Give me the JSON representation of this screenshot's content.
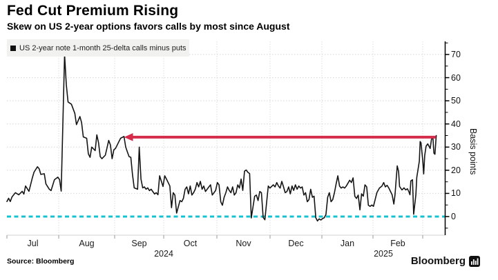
{
  "header": {
    "title": "Fed Cut Premium Rising",
    "subtitle": "Skew on US 2-year options favors calls by most since August"
  },
  "legend": {
    "marker": "black-square",
    "label": "US 2-year note 1-month 25-delta calls minus puts"
  },
  "source": {
    "label": "Source: Bloomberg"
  },
  "brand": {
    "label": "Bloomberg",
    "icon": "bloomberg-terminal-icon"
  },
  "colors": {
    "line": "#141414",
    "arrow": "#d62c4b",
    "zero_line": "#14c3cf",
    "grid": "#d6d6d6",
    "month_grid": "#dedede",
    "legend_bg": "#f1f1ef"
  },
  "chart_data": {
    "type": "line",
    "title": "Fed Cut Premium Rising",
    "subtitle": "Skew on US 2-year options favors calls by most since August",
    "y_axis": {
      "label": "Basis points",
      "ticks": [
        0,
        10,
        20,
        30,
        40,
        50,
        60,
        70
      ],
      "minor_ticks": [
        -5,
        5,
        15,
        25,
        35,
        45,
        55,
        65,
        75
      ],
      "range": [
        -8,
        76
      ],
      "grid": "dotted"
    },
    "x_axis": {
      "unit": "days since Jul 1 2024",
      "months": [
        "Jul",
        "Aug",
        "Sep",
        "Oct",
        "Nov",
        "Dec",
        "Jan",
        "Feb"
      ],
      "years": [
        "2024",
        "2025"
      ]
    },
    "annotations": {
      "arrow": {
        "type": "horizontal-arrow",
        "level": 34.3,
        "tip_day": 69,
        "end_day": 252.8,
        "color": "#d62c4b",
        "meaning": "skew back at highest level since early September"
      },
      "zero_line": {
        "value": 0,
        "style": "dashed",
        "color": "#14c3cf"
      }
    },
    "series": [
      {
        "name": "US 2-year note 1-month 25-delta calls minus puts",
        "color": "#141414",
        "points": [
          [
            0,
            6.5
          ],
          [
            1,
            7.9
          ],
          [
            2,
            6.5
          ],
          [
            3,
            8.5
          ],
          [
            5,
            10.3
          ],
          [
            7,
            9.4
          ],
          [
            9,
            10.9
          ],
          [
            10,
            9.7
          ],
          [
            11,
            13.2
          ],
          [
            13,
            10.9
          ],
          [
            15,
            16.8
          ],
          [
            16,
            19.2
          ],
          [
            18,
            21.5
          ],
          [
            19,
            20.6
          ],
          [
            20,
            18.2
          ],
          [
            22,
            18.5
          ],
          [
            23,
            14.1
          ],
          [
            25,
            11.8
          ],
          [
            26,
            11.2
          ],
          [
            28,
            15.9
          ],
          [
            30,
            17
          ],
          [
            31,
            16
          ],
          [
            32,
            11
          ],
          [
            34,
            70
          ],
          [
            35,
            57
          ],
          [
            36,
            49.5
          ],
          [
            38,
            48.5
          ],
          [
            40,
            44.6
          ],
          [
            41,
            39.7
          ],
          [
            43,
            43.2
          ],
          [
            44,
            40.6
          ],
          [
            45,
            34.4
          ],
          [
            47,
            33.8
          ],
          [
            48,
            27.1
          ],
          [
            49,
            25.6
          ],
          [
            50,
            30
          ],
          [
            52,
            28.5
          ],
          [
            53,
            35.3
          ],
          [
            54,
            31.8
          ],
          [
            55,
            25.9
          ],
          [
            56,
            25
          ],
          [
            58,
            26.5
          ],
          [
            60,
            32.9
          ],
          [
            61,
            30.9
          ],
          [
            62,
            25
          ],
          [
            63,
            28.8
          ],
          [
            64,
            29.4
          ],
          [
            65,
            30.9
          ],
          [
            66,
            32.4
          ],
          [
            67,
            33.8
          ],
          [
            69,
            34.6
          ],
          [
            70,
            30
          ],
          [
            71,
            27.9
          ],
          [
            72,
            25.9
          ],
          [
            73,
            25.6
          ],
          [
            74,
            18.2
          ],
          [
            75,
            12.4
          ],
          [
            77,
            11.8
          ],
          [
            78,
            30
          ],
          [
            79,
            16.2
          ],
          [
            80,
            12.4
          ],
          [
            81,
            12.8
          ],
          [
            82,
            11.8
          ],
          [
            83,
            12.4
          ],
          [
            84,
            11.2
          ],
          [
            85,
            11.8
          ],
          [
            87,
            9.7
          ],
          [
            88,
            10.3
          ],
          [
            89,
            9.4
          ],
          [
            90,
            17.6
          ],
          [
            92,
            13
          ],
          [
            93,
            17.6
          ],
          [
            94,
            16.2
          ],
          [
            96,
            13.2
          ],
          [
            97,
            3.8
          ],
          [
            98,
            10.3
          ],
          [
            99,
            9.3
          ],
          [
            100,
            1.5
          ],
          [
            102,
            6.9
          ],
          [
            103,
            6.4
          ],
          [
            104,
            7.8
          ],
          [
            105,
            11.8
          ],
          [
            106,
            12.8
          ],
          [
            107,
            9.8
          ],
          [
            108,
            13.2
          ],
          [
            109,
            9.3
          ],
          [
            110,
            10.3
          ],
          [
            111,
            11.8
          ],
          [
            112,
            14.7
          ],
          [
            113,
            12.8
          ],
          [
            114,
            15.2
          ],
          [
            115,
            11.8
          ],
          [
            116,
            13.2
          ],
          [
            117,
            10.8
          ],
          [
            119,
            12.8
          ],
          [
            120,
            13.7
          ],
          [
            121,
            9.3
          ],
          [
            123,
            11.3
          ],
          [
            124,
            14.7
          ],
          [
            125,
            13.7
          ],
          [
            126,
            6.4
          ],
          [
            127,
            4.9
          ],
          [
            128,
            8.3
          ],
          [
            129,
            10.3
          ],
          [
            130,
            12.8
          ],
          [
            131,
            11.3
          ],
          [
            132,
            10.3
          ],
          [
            133,
            12.8
          ],
          [
            134,
            9.3
          ],
          [
            135,
            10.3
          ],
          [
            136,
            13.7
          ],
          [
            137,
            12.3
          ],
          [
            138,
            16.2
          ],
          [
            139,
            11.3
          ],
          [
            140,
            19.6
          ],
          [
            141,
            20.1
          ],
          [
            142,
            19.1
          ],
          [
            143,
            18.6
          ],
          [
            144,
            -0.6
          ],
          [
            146,
            8.8
          ],
          [
            147,
            9.3
          ],
          [
            148,
            6.9
          ],
          [
            149,
            10.8
          ],
          [
            150,
            10.3
          ],
          [
            151,
            -0.4
          ],
          [
            152,
            -1.4
          ],
          [
            154,
            13.2
          ],
          [
            155,
            12.3
          ],
          [
            157,
            13.7
          ],
          [
            158,
            12.8
          ],
          [
            159,
            14.7
          ],
          [
            160,
            13.2
          ],
          [
            161,
            12.3
          ],
          [
            162,
            15.2
          ],
          [
            163,
            12.8
          ],
          [
            164,
            10.3
          ],
          [
            165,
            10.8
          ],
          [
            166,
            12.8
          ],
          [
            167,
            9.8
          ],
          [
            168,
            13.2
          ],
          [
            169,
            11.3
          ],
          [
            170,
            13.7
          ],
          [
            171,
            11.8
          ],
          [
            172,
            13.2
          ],
          [
            173,
            12.3
          ],
          [
            174,
            12.8
          ],
          [
            175,
            9.3
          ],
          [
            176,
            10.3
          ],
          [
            177,
            6.4
          ],
          [
            178,
            7.3
          ],
          [
            179,
            11.8
          ],
          [
            180,
            8.3
          ],
          [
            181,
            8.8
          ],
          [
            182,
            -0.5
          ],
          [
            183,
            -1.9
          ],
          [
            184,
            -1
          ],
          [
            185,
            -1.5
          ],
          [
            186,
            -0.9
          ],
          [
            187,
            -0.5
          ],
          [
            188,
            0.9
          ],
          [
            189,
            8.3
          ],
          [
            190,
            10.3
          ],
          [
            191,
            6.4
          ],
          [
            192,
            7.3
          ],
          [
            193,
            10.3
          ],
          [
            194,
            14.2
          ],
          [
            195,
            17.6
          ],
          [
            196,
            13.2
          ],
          [
            197,
            12.3
          ],
          [
            198,
            12.8
          ],
          [
            199,
            12.3
          ],
          [
            200,
            13.2
          ],
          [
            202,
            15.7
          ],
          [
            203,
            14.7
          ],
          [
            204,
            16.7
          ],
          [
            205,
            8.8
          ],
          [
            206,
            7.8
          ],
          [
            207,
            9.3
          ],
          [
            208,
            2.9
          ],
          [
            209,
            9.8
          ],
          [
            210,
            8.8
          ],
          [
            211,
            13.7
          ],
          [
            212,
            12.8
          ],
          [
            213,
            4.9
          ],
          [
            214,
            4.4
          ],
          [
            215,
            5
          ],
          [
            216,
            4.4
          ],
          [
            218,
            10.3
          ],
          [
            219.5,
            12.3
          ],
          [
            221,
            13.2
          ],
          [
            222,
            14.7
          ],
          [
            223,
            12.8
          ],
          [
            224,
            13.5
          ],
          [
            225,
            12.4
          ],
          [
            227,
            9.4
          ],
          [
            228,
            5.4
          ],
          [
            228.7,
            9.4
          ],
          [
            230,
            21.9
          ],
          [
            230.8,
            19.4
          ],
          [
            231.4,
            13
          ],
          [
            232.8,
            11.5
          ],
          [
            234,
            12.4
          ],
          [
            235,
            11.5
          ],
          [
            236,
            12
          ],
          [
            237,
            10.5
          ],
          [
            237.5,
            9.4
          ],
          [
            238,
            15.4
          ],
          [
            239,
            15.9
          ],
          [
            239.7,
            1
          ],
          [
            241,
            9.4
          ],
          [
            241.5,
            16.9
          ],
          [
            243,
            23.9
          ],
          [
            243.5,
            32.4
          ],
          [
            244,
            31.9
          ],
          [
            245,
            24.4
          ],
          [
            245.6,
            18.4
          ],
          [
            246.2,
            26.4
          ],
          [
            247,
            30.4
          ],
          [
            248,
            31.4
          ],
          [
            249.4,
            29.4
          ],
          [
            250.2,
            33.4
          ],
          [
            251,
            34.4
          ],
          [
            251.6,
            27.4
          ],
          [
            252.2,
            26.9
          ],
          [
            253,
            35
          ]
        ]
      }
    ]
  }
}
